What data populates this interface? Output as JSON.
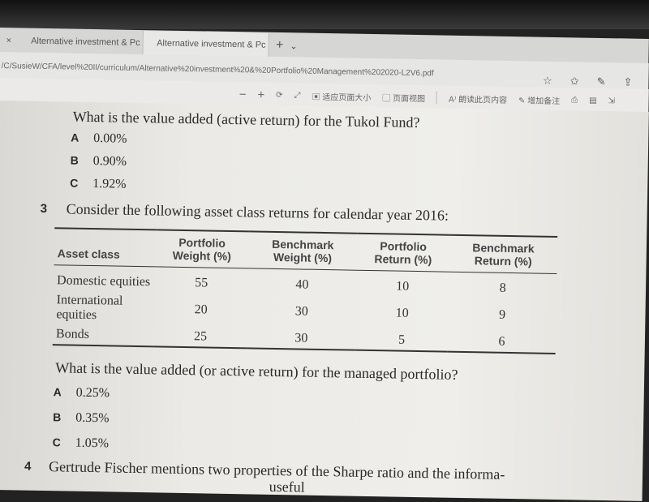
{
  "browser": {
    "tabs": [
      {
        "label": "Alternative investment & Pc"
      },
      {
        "label": "Alternative investment & Pc"
      }
    ],
    "new_tab": "+",
    "tab_menu": "⌄",
    "close": "×",
    "url": "/C/SusieW/CFA/level%20II/curriculum/Alternative%20investment%20&%20Portfolio%20Management%202020-L2V6.pdf",
    "toolbar": {
      "zoom_out": "−",
      "zoom_in": "+",
      "fit_page": "适应页面大小",
      "page_view": "页面视图",
      "read_aloud": "朗读此页内容",
      "add_notes": "增加备注"
    }
  },
  "document": {
    "q2": {
      "text": "What is the value added (active return) for the Tukol Fund?",
      "options": [
        {
          "letter": "A",
          "value": "0.00%"
        },
        {
          "letter": "B",
          "value": "0.90%"
        },
        {
          "letter": "C",
          "value": "1.92%"
        }
      ]
    },
    "q3": {
      "number": "3",
      "text": "Consider the following asset class returns for calendar year 2016:",
      "headers": [
        "Asset class",
        "Portfolio Weight (%)",
        "Benchmark Weight (%)",
        "Portfolio Return (%)",
        "Benchmark Return (%)"
      ],
      "rows": [
        [
          "Domestic equities",
          "55",
          "40",
          "10",
          "8"
        ],
        [
          "International equities",
          "20",
          "30",
          "10",
          "9"
        ],
        [
          "Bonds",
          "25",
          "30",
          "5",
          "6"
        ]
      ],
      "question": "What is the value added (or active return) for the managed portfolio?",
      "options": [
        {
          "letter": "A",
          "value": "0.25%"
        },
        {
          "letter": "B",
          "value": "0.35%"
        },
        {
          "letter": "C",
          "value": "1.05%"
        }
      ]
    },
    "q4": {
      "number": "4",
      "text": "Gertrude Fischer mentions two properties of the Sharpe ratio and the informa-",
      "text2": "useful"
    }
  }
}
